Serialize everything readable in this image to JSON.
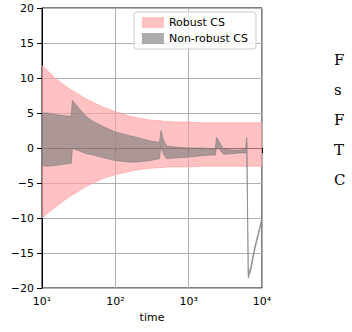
{
  "chart_data": {
    "type": "band",
    "x_label": "time",
    "log": "x",
    "grid": true,
    "legend": "upper right",
    "xlim": [
      10,
      10000
    ],
    "xticks": [
      {
        "value": 10,
        "label": "10¹"
      },
      {
        "value": 100,
        "label": "10²"
      },
      {
        "value": 1000,
        "label": "10³"
      },
      {
        "value": 10000,
        "label": "10⁴"
      }
    ],
    "ylim": [
      -20,
      20
    ],
    "yticks": [
      {
        "value": -20,
        "label": "−20"
      },
      {
        "value": -15,
        "label": "−15"
      },
      {
        "value": -10,
        "label": "−10"
      },
      {
        "value": -5,
        "label": "−5"
      },
      0,
      5,
      10,
      15,
      20
    ],
    "x": [
      10,
      12,
      15,
      20,
      25,
      26,
      30,
      40,
      50,
      70,
      100,
      150,
      200,
      300,
      400,
      420,
      450,
      500,
      700,
      1000,
      1500,
      2000,
      2300,
      2400,
      3000,
      4000,
      5000,
      6000,
      6200,
      6500,
      7000,
      8000,
      10000
    ],
    "series": [
      {
        "name": "Robust CS",
        "color": "#ff9f9f",
        "lower": [
          -10,
          -9.3,
          -8.5,
          -7.5,
          -6.8,
          -6.7,
          -6.3,
          -5.5,
          -5,
          -4.3,
          -3.8,
          -3.4,
          -3.1,
          -2.9,
          -2.8,
          -2.8,
          -2.8,
          -2.7,
          -2.7,
          -2.7,
          -2.6,
          -2.6,
          -2.6,
          -2.6,
          -2.6,
          -2.6,
          -2.6,
          -2.6,
          -2.6,
          -2.6,
          -2.6,
          -2.6,
          -2.6
        ],
        "upper": [
          11.8,
          11,
          10,
          9,
          8.3,
          8.2,
          7.8,
          7,
          6.5,
          5.8,
          5.2,
          4.6,
          4.3,
          4,
          3.9,
          3.9,
          3.8,
          3.8,
          3.7,
          3.7,
          3.6,
          3.6,
          3.6,
          3.6,
          3.6,
          3.6,
          3.6,
          3.6,
          3.6,
          3.6,
          3.6,
          3.6,
          3.6
        ]
      },
      {
        "name": "Non-robust CS",
        "color": "#7f7f7f",
        "lower": [
          -2.5,
          -2.6,
          -2.5,
          -2.3,
          -2.2,
          0,
          -0.3,
          -0.8,
          -1,
          -1.4,
          -1.8,
          -2,
          -2,
          -1.8,
          -1.5,
          0.3,
          -0.8,
          -1.5,
          -1.4,
          -1.3,
          -1.1,
          -1,
          -1,
          0.2,
          -0.9,
          -0.8,
          -0.7,
          -0.7,
          0.8,
          -18.6,
          -17.6,
          -14.5,
          -10.3
        ],
        "upper": [
          5,
          5,
          4.8,
          4.6,
          4.5,
          6.8,
          6,
          4.5,
          3.8,
          3,
          2.3,
          1.8,
          1.5,
          1,
          0.8,
          2.5,
          1.2,
          0.3,
          0.1,
          0,
          0,
          -0.1,
          -0.2,
          1.5,
          -0.2,
          -0.3,
          -0.3,
          -0.2,
          1.5,
          -18,
          -17,
          -14,
          -10
        ]
      }
    ],
    "annotations": [
      "F",
      "s",
      "F",
      "T",
      "C"
    ]
  }
}
